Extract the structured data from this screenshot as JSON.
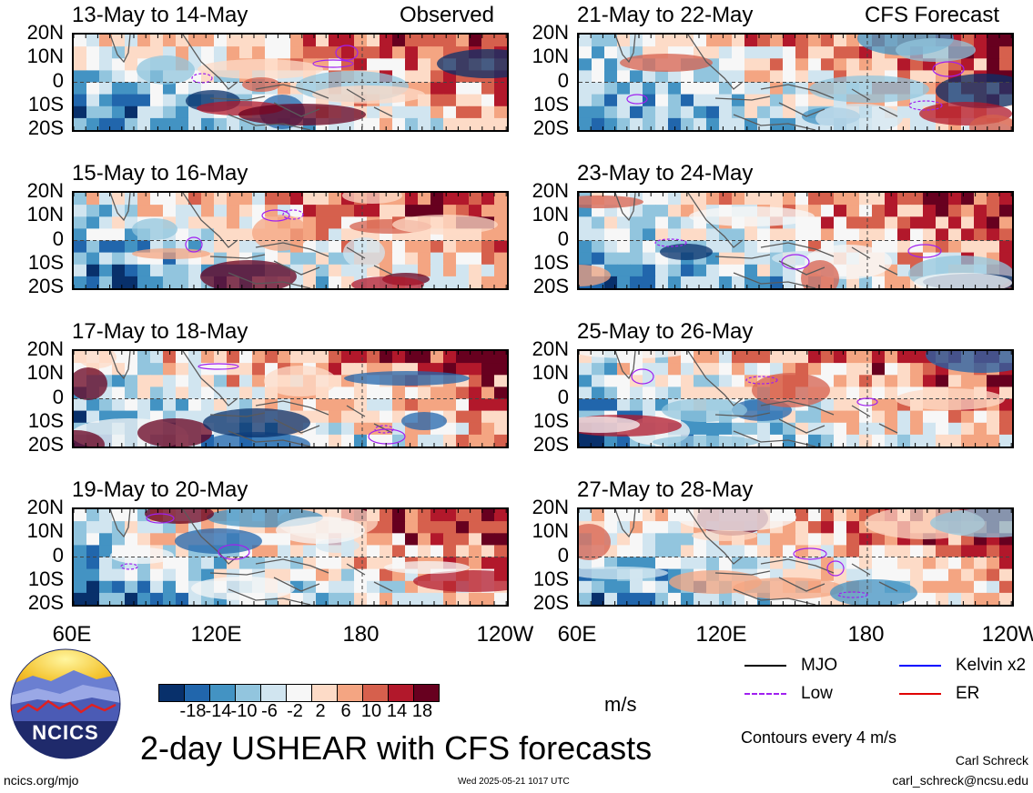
{
  "panels": [
    {
      "title": "13-May to 14-May",
      "tag": "Observed",
      "seed": 1
    },
    {
      "title": "21-May to 22-May",
      "tag": "CFS Forecast",
      "seed": 2
    },
    {
      "title": "15-May to 16-May",
      "tag": "",
      "seed": 3
    },
    {
      "title": "23-May to 24-May",
      "tag": "",
      "seed": 4
    },
    {
      "title": "17-May to 18-May",
      "tag": "",
      "seed": 5
    },
    {
      "title": "25-May to 26-May",
      "tag": "",
      "seed": 6
    },
    {
      "title": "19-May to 20-May",
      "tag": "",
      "seed": 7
    },
    {
      "title": "27-May to 28-May",
      "tag": "",
      "seed": 8
    }
  ],
  "lat_labels": [
    "20N",
    "10N",
    "0",
    "10S",
    "20S"
  ],
  "lon_labels": [
    "60E",
    "120E",
    "180",
    "120W"
  ],
  "colorbar": {
    "colors": [
      "#08306b",
      "#2166ac",
      "#4393c3",
      "#92c5de",
      "#d1e5f0",
      "#f7f7f7",
      "#fddbc7",
      "#f4a582",
      "#d6604d",
      "#b2182b",
      "#67001f"
    ],
    "ticks": [
      "-18",
      "-14",
      "-10",
      "-6",
      "-2",
      "2",
      "6",
      "10",
      "14",
      "18"
    ],
    "unit": "m/s"
  },
  "legend": [
    {
      "label": "MJO",
      "color": "#000000",
      "style": "solid"
    },
    {
      "label": "Kelvin x2",
      "color": "#0000ff",
      "style": "solid"
    },
    {
      "label": "Low",
      "color": "#a020f0",
      "style": "dashed"
    },
    {
      "label": "ER",
      "color": "#e00000",
      "style": "solid"
    }
  ],
  "contour_note": "Contours every 4 m/s",
  "main_title": "2-day USHEAR with CFS forecasts",
  "logo_text": "NCICS",
  "footer_left": "ncics.org/mjo",
  "footer_center": "Wed 2025-05-21 1017 UTC",
  "author": "Carl Schreck",
  "email": "carl_schreck@ncsu.edu"
}
